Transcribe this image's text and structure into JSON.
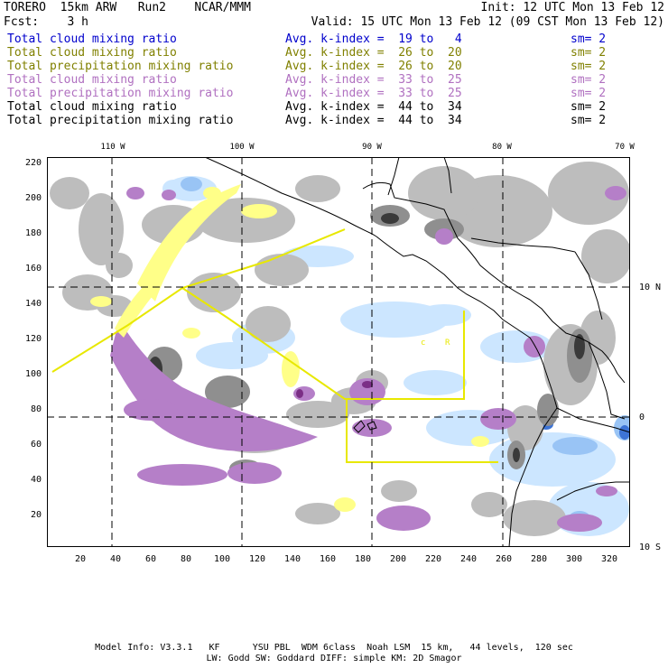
{
  "header": {
    "left1": "TORERO  15km ARW   Run2    NCAR/MMM",
    "left2": "Fcst:    3 h",
    "right1": "Init: 12 UTC Mon 13 Feb 12",
    "right2": "Valid: 15 UTC Mon 13 Feb 12 (09 CST Mon 13 Feb 12)"
  },
  "legend": [
    {
      "field": "Total cloud mixing ratio",
      "index": "Avg. k-index =  19 to   4",
      "sm": "sm= 2",
      "color": "#0000cc"
    },
    {
      "field": "Total cloud mixing ratio",
      "index": "Avg. k-index =  26 to  20",
      "sm": "sm= 2",
      "color": "#808000"
    },
    {
      "field": "Total precipitation mixing ratio",
      "index": "Avg. k-index =  26 to  20",
      "sm": "sm= 2",
      "color": "#808000"
    },
    {
      "field": "Total cloud mixing ratio",
      "index": "Avg. k-index =  33 to  25",
      "sm": "sm= 2",
      "color": "#b070c0"
    },
    {
      "field": "Total precipitation mixing ratio",
      "index": "Avg. k-index =  33 to  25",
      "sm": "sm= 2",
      "color": "#b070c0"
    },
    {
      "field": "Total cloud mixing ratio",
      "index": "Avg. k-index =  44 to  34",
      "sm": "sm= 2",
      "color": "#000000"
    },
    {
      "field": "Total precipitation mixing ratio",
      "index": "Avg. k-index =  44 to  34",
      "sm": "sm= 2",
      "color": "#000000"
    }
  ],
  "axes": {
    "top_labels": [
      "110 W",
      "100 W",
      "90 W",
      "80 W",
      "70 W"
    ],
    "right_labels": [
      "10 N",
      "0",
      "10 S"
    ],
    "y_ticks": [
      "220",
      "200",
      "180",
      "160",
      "140",
      "120",
      "100",
      "80",
      "60",
      "40",
      "20"
    ],
    "x_ticks": [
      "20",
      "40",
      "60",
      "80",
      "100",
      "120",
      "140",
      "160",
      "180",
      "200",
      "220",
      "240",
      "260",
      "280",
      "300",
      "320"
    ]
  },
  "footer": {
    "line1": "Model Info: V3.3.1   KF      YSU PBL  WDM 6class  Noah LSM  15 km,   44 levels,  120 sec",
    "line2": "LW: Godd SW: Goddard DIFF: simple KM: 2D Smagor"
  },
  "map_labels": [
    "c",
    "R"
  ],
  "colors": {
    "gray_light": "#bdbdbd",
    "gray_mid": "#8f8f8f",
    "gray_dark": "#3a3a3a",
    "purple": "#b57fc8",
    "purple_dark": "#7b2f86",
    "yellow": "#ffff88",
    "yellow_line": "#e8e800",
    "blue_light": "#cce6ff",
    "blue_mid": "#99c4f5",
    "blue_dark": "#3d74d6"
  }
}
